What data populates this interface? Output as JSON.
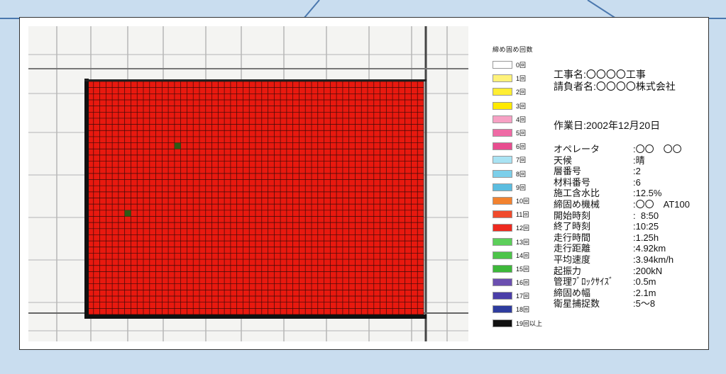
{
  "legend": {
    "title": "締め固め回数",
    "items": [
      {
        "label": "0回",
        "color": "#ffffff"
      },
      {
        "label": "1回",
        "color": "#fff27a"
      },
      {
        "label": "2回",
        "color": "#ffee33"
      },
      {
        "label": "3回",
        "color": "#ffea00"
      },
      {
        "label": "4回",
        "color": "#f7a1c4"
      },
      {
        "label": "5回",
        "color": "#ef6aa5"
      },
      {
        "label": "6回",
        "color": "#e84d8f"
      },
      {
        "label": "7回",
        "color": "#a9e3f3"
      },
      {
        "label": "8回",
        "color": "#7ccfea"
      },
      {
        "label": "9回",
        "color": "#5bbde0"
      },
      {
        "label": "10回",
        "color": "#f2822f"
      },
      {
        "label": "11回",
        "color": "#f04b2d"
      },
      {
        "label": "12回",
        "color": "#ee2a1f"
      },
      {
        "label": "13回",
        "color": "#5ccf5a"
      },
      {
        "label": "14回",
        "color": "#4dc44a"
      },
      {
        "label": "15回",
        "color": "#3db83a"
      },
      {
        "label": "16回",
        "color": "#6b4fb0"
      },
      {
        "label": "17回",
        "color": "#4a3ea8"
      },
      {
        "label": "18回",
        "color": "#2e3c9e"
      },
      {
        "label": "19回以上",
        "color": "#111111"
      }
    ]
  },
  "project": {
    "name_line": "工事名:〇〇〇〇工事",
    "contractor_line": "請負者名:〇〇〇〇株式会社",
    "workday_line": "作業日:2002年12月20日"
  },
  "details": [
    {
      "key": "オペレータ",
      "value": ":〇〇　〇〇"
    },
    {
      "key": "天候",
      "value": ":晴"
    },
    {
      "key": "層番号",
      "value": ":2"
    },
    {
      "key": "材料番号",
      "value": ":6"
    },
    {
      "key": "施工含水比",
      "value": ":12.5%"
    },
    {
      "key": "締固め機械",
      "value": ":〇〇　AT100"
    },
    {
      "key": "開始時刻",
      "value": ":  8:50"
    },
    {
      "key": "終了時刻",
      "value": ":10:25"
    },
    {
      "key": "走行時間",
      "value": ":1.25h"
    },
    {
      "key": "走行距離",
      "value": ":4.92km"
    },
    {
      "key": "平均速度",
      "value": ":3.94km/h"
    },
    {
      "key": "起振力",
      "value": ":200kN"
    },
    {
      "key": "管理ﾌﾞﾛｯｸｻｲｽﾞ",
      "value": ":0.5m"
    },
    {
      "key": "締固め幅",
      "value": ":2.1m"
    },
    {
      "key": "衛星捕捉数",
      "value": ":5〜8"
    }
  ],
  "grid": {
    "fill_color": "#e8190f",
    "line_color": "#3a0a08",
    "anomaly_color": "#2f5a16"
  }
}
